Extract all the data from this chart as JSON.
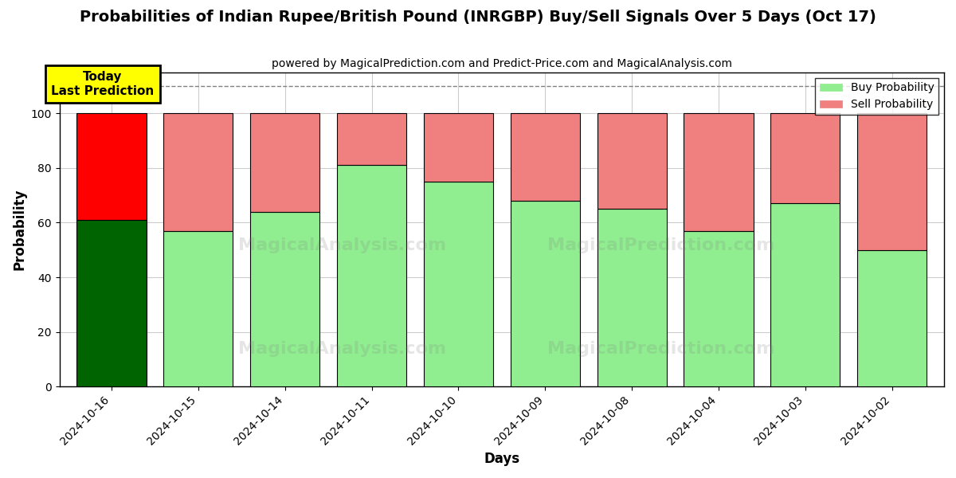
{
  "title": "Probabilities of Indian Rupee/British Pound (INRGBP) Buy/Sell Signals Over 5 Days (Oct 17)",
  "subtitle": "powered by MagicalPrediction.com and Predict-Price.com and MagicalAnalysis.com",
  "xlabel": "Days",
  "ylabel": "Probability",
  "categories": [
    "2024-10-16",
    "2024-10-15",
    "2024-10-14",
    "2024-10-11",
    "2024-10-10",
    "2024-10-09",
    "2024-10-08",
    "2024-10-04",
    "2024-10-03",
    "2024-10-02"
  ],
  "buy_values": [
    61,
    57,
    64,
    81,
    75,
    68,
    65,
    57,
    67,
    50
  ],
  "sell_values": [
    39,
    43,
    36,
    19,
    25,
    32,
    35,
    43,
    33,
    50
  ],
  "today_index": 0,
  "buy_color_today": "#006400",
  "sell_color_today": "#ff0000",
  "buy_color_normal": "#90EE90",
  "sell_color_normal": "#F08080",
  "legend_buy_label": "Buy Probability",
  "legend_sell_label": "Sell Probability",
  "today_annotation": "Today\nLast Prediction",
  "ylim": [
    0,
    115
  ],
  "yticks": [
    0,
    20,
    40,
    60,
    80,
    100
  ],
  "dashed_line_y": 110,
  "figsize": [
    12.0,
    6.0
  ],
  "dpi": 100,
  "background_color": "#ffffff",
  "grid_color": "#cccccc",
  "bar_width": 0.8
}
